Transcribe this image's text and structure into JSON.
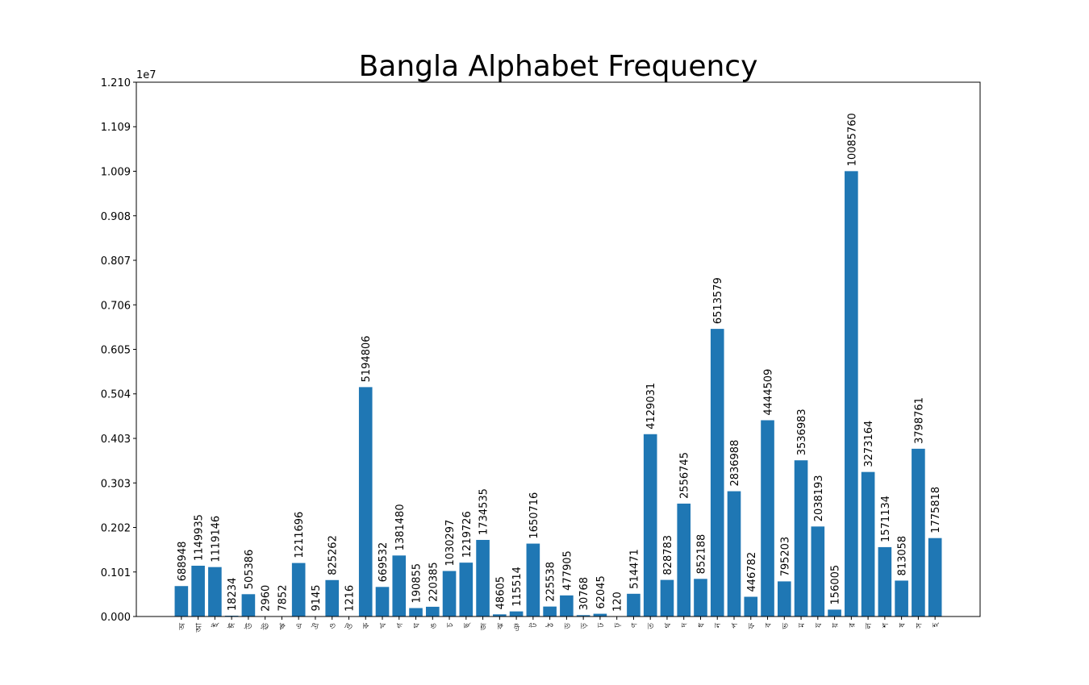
{
  "chart_data": {
    "type": "bar",
    "title": "Bangla Alphabet Frequency",
    "categories": [
      "অ",
      "আ",
      "ই",
      "ঈ",
      "উ",
      "ঊ",
      "ঋ",
      "এ",
      "ঐ",
      "ও",
      "ঔ",
      "ক",
      "খ",
      "গ",
      "ঘ",
      "ঙ",
      "চ",
      "ছ",
      "জ",
      "ঝ",
      "ঞ",
      "ট",
      "ঠ",
      "ড",
      "ড়",
      "ঢ",
      "ঢ়",
      "ণ",
      "ত",
      "থ",
      "দ",
      "ধ",
      "ন",
      "প",
      "ফ",
      "ব",
      "ভ",
      "ম",
      "য",
      "য়",
      "র",
      "ল",
      "শ",
      "ষ",
      "স",
      "হ"
    ],
    "values": [
      688948,
      1149935,
      1119146,
      18234,
      505386,
      2960,
      7852,
      1211696,
      9145,
      825262,
      1216,
      5194806,
      669532,
      1381480,
      190855,
      220385,
      1030297,
      1219726,
      1734535,
      48605,
      115514,
      1650716,
      225538,
      477905,
      30768,
      62045,
      120,
      514471,
      4129031,
      828783,
      2556745,
      852188,
      6513579,
      2836988,
      446782,
      4444509,
      795203,
      3536983,
      2038193,
      156005,
      10085760,
      3273164,
      1571134,
      813058,
      3798761,
      1775818
    ],
    "color": "#1f77b4",
    "ylim": [
      0,
      12100000
    ],
    "yticks": [
      {
        "value": 0,
        "label": "0.000"
      },
      {
        "value": 1008333,
        "label": "0.101"
      },
      {
        "value": 2016667,
        "label": "0.202"
      },
      {
        "value": 3025000,
        "label": "0.303"
      },
      {
        "value": 4033333,
        "label": "0.403"
      },
      {
        "value": 5041667,
        "label": "0.504"
      },
      {
        "value": 6050000,
        "label": "0.605"
      },
      {
        "value": 7058333,
        "label": "0.706"
      },
      {
        "value": 8066667,
        "label": "0.807"
      },
      {
        "value": 9075000,
        "label": "0.908"
      },
      {
        "value": 10083333,
        "label": "1.009"
      },
      {
        "value": 11091667,
        "label": "1.109"
      },
      {
        "value": 12100000,
        "label": "1.210"
      }
    ],
    "y_offset_label": "1e7",
    "grid": false
  }
}
